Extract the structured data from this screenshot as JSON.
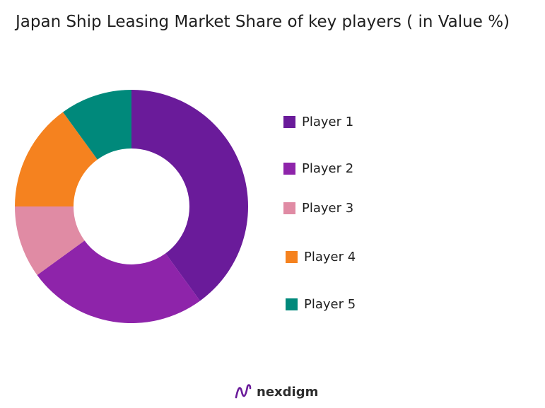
{
  "chart_data": {
    "type": "pie",
    "variant": "donut",
    "title": "Japan Ship Leasing Market Share of key players ( in Value %)",
    "categories": [
      "Player 1",
      "Player 2",
      "Player 3",
      "Player 4",
      "Player 5"
    ],
    "values": [
      40,
      25,
      10,
      15,
      10
    ],
    "colors": [
      "#6a1b9a",
      "#8e24aa",
      "#e08ba4",
      "#f5821f",
      "#00897b"
    ],
    "legend_position": "right"
  },
  "brand": {
    "name": "nexdigm",
    "logo_icon": "nexdigm-logo-icon",
    "color": "#6a1b9a"
  }
}
